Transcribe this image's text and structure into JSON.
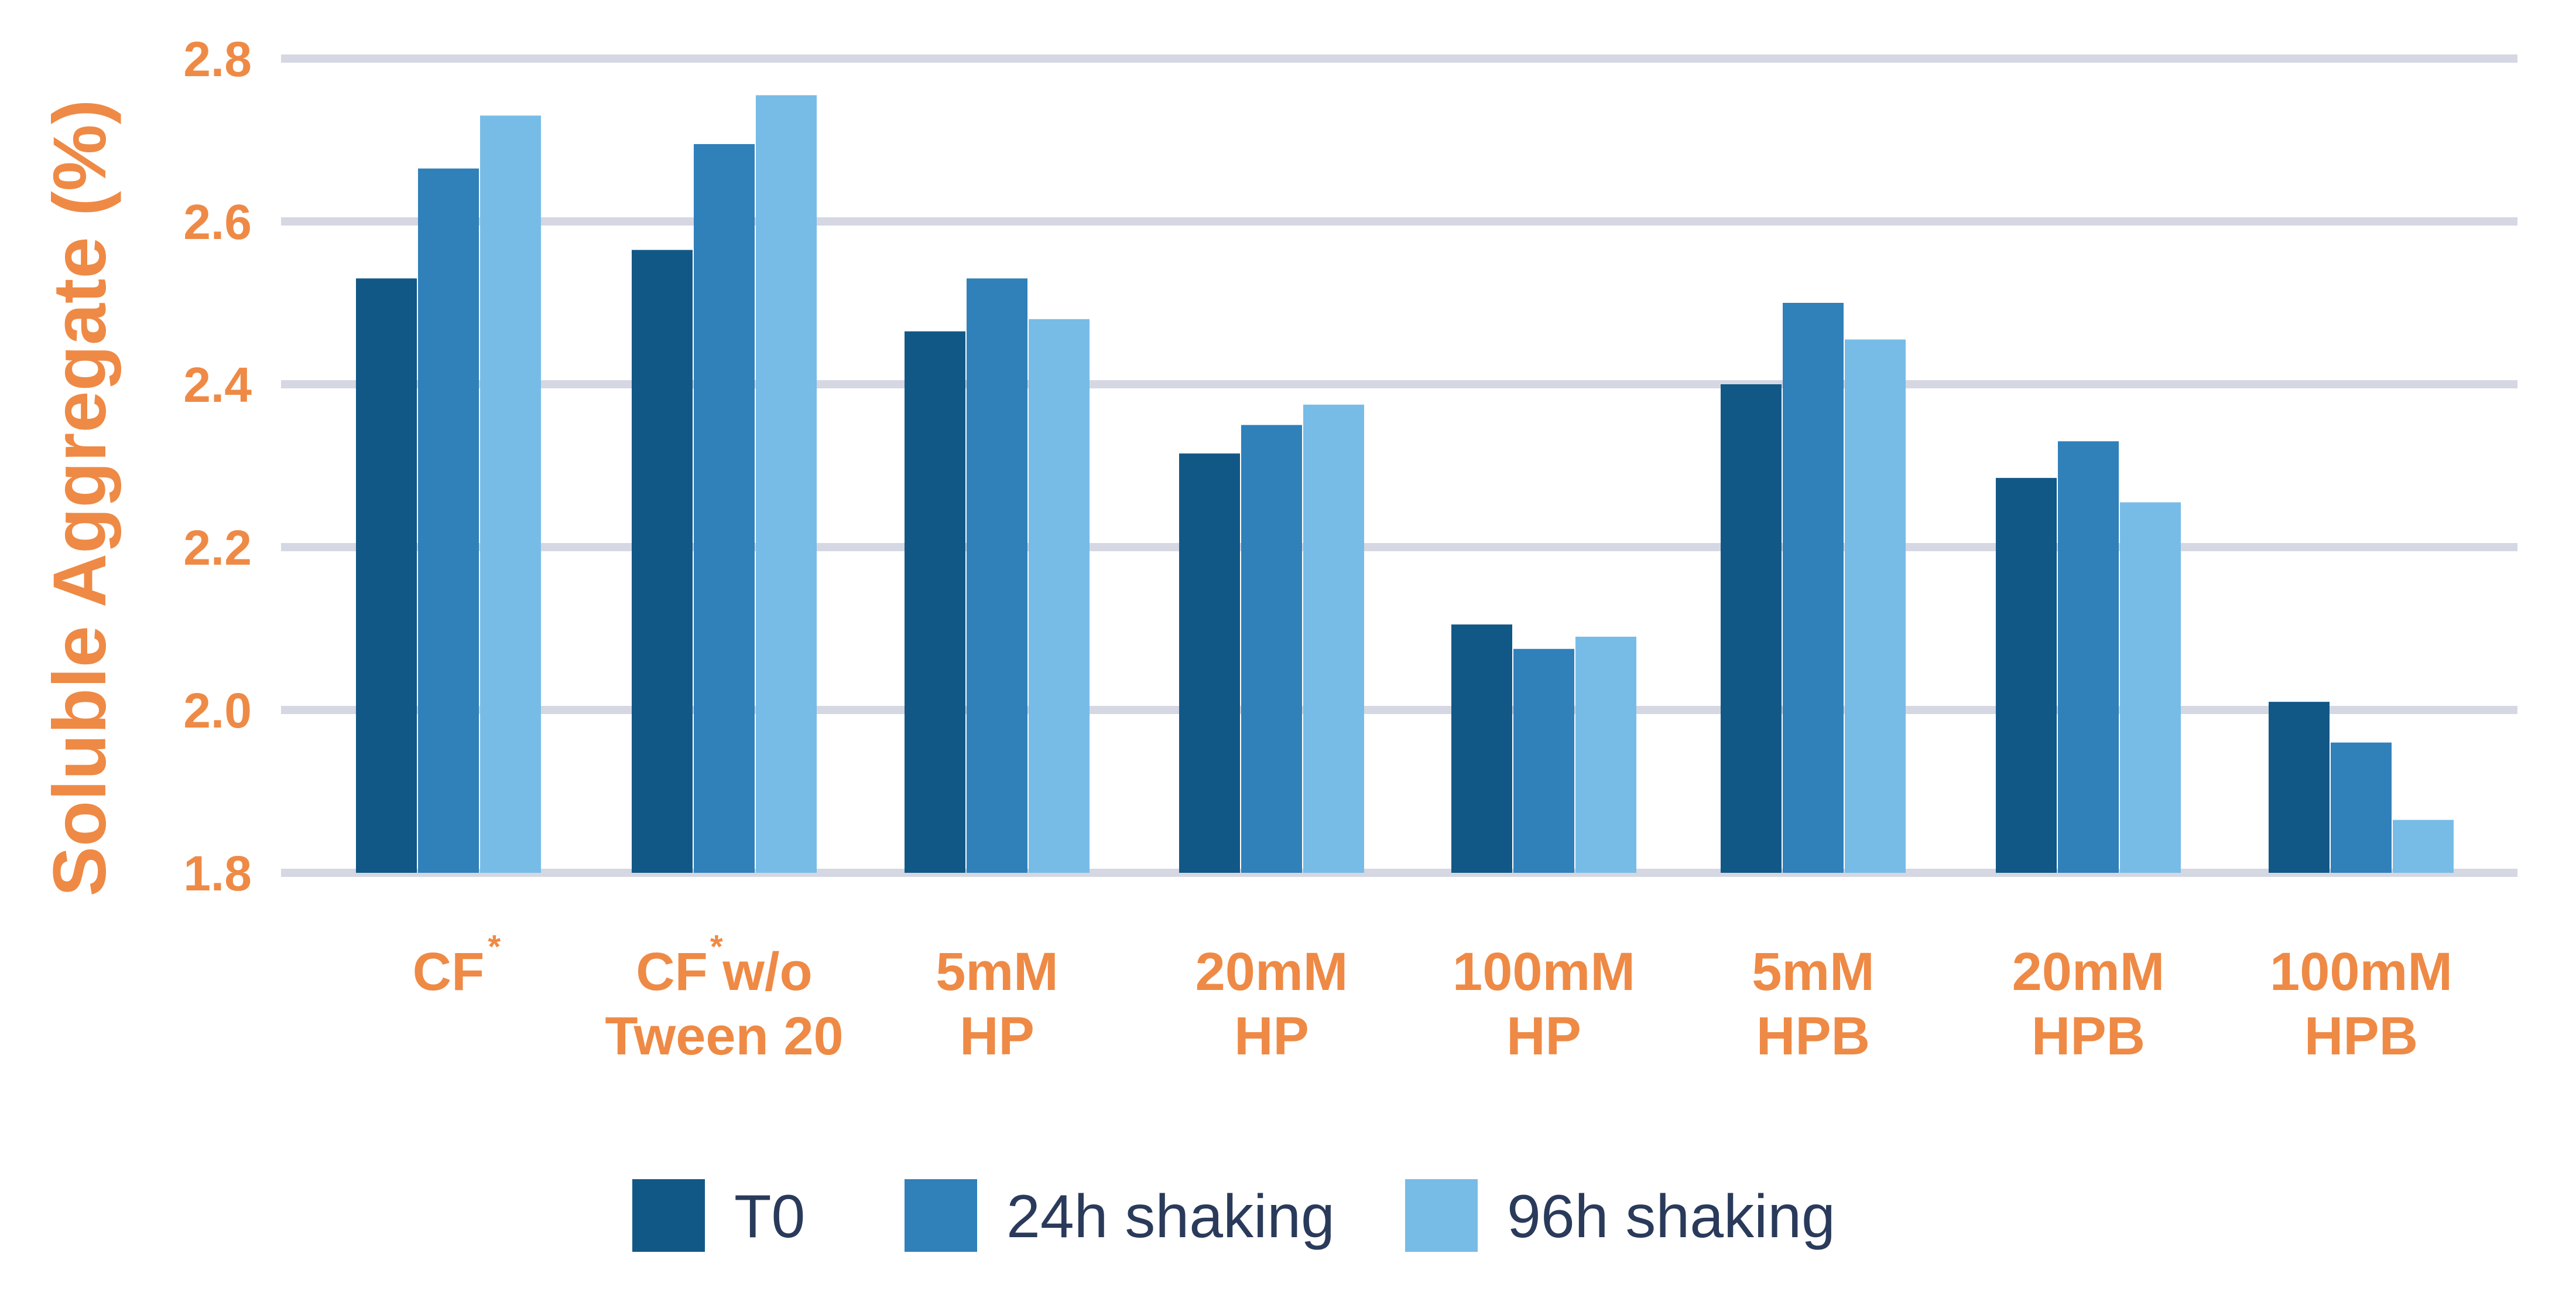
{
  "chart_data": {
    "type": "bar",
    "title": "",
    "xlabel": "",
    "ylabel": "Soluble Aggregate (%)",
    "ylim": [
      1.8,
      2.8
    ],
    "yticks": [
      "1.8",
      "2.0",
      "2.2",
      "2.4",
      "2.6",
      "2.8"
    ],
    "grid": true,
    "legend_position": "bottom",
    "categories": [
      {
        "lines": [
          "CF"
        ],
        "star_after_line": 0
      },
      {
        "lines": [
          "CF w/o",
          "Tween 20"
        ],
        "star_after_text": "CF"
      },
      {
        "lines": [
          "5mM",
          "HP"
        ]
      },
      {
        "lines": [
          "20mM",
          "HP"
        ]
      },
      {
        "lines": [
          "100mM",
          "HP"
        ]
      },
      {
        "lines": [
          "5mM",
          "HPB"
        ]
      },
      {
        "lines": [
          "20mM",
          "HPB"
        ]
      },
      {
        "lines": [
          "100mM",
          "HPB"
        ]
      }
    ],
    "footnote_marker": "*",
    "series": [
      {
        "name": "T0",
        "color": "#125886",
        "values": [
          2.53,
          2.565,
          2.465,
          2.315,
          2.105,
          2.4,
          2.285,
          2.01
        ]
      },
      {
        "name": "24h shaking",
        "color": "#3080b9",
        "values": [
          2.665,
          2.695,
          2.53,
          2.35,
          2.075,
          2.5,
          2.33,
          1.96
        ]
      },
      {
        "name": "96h shaking",
        "color": "#77bce7",
        "values": [
          2.73,
          2.755,
          2.48,
          2.375,
          2.09,
          2.455,
          2.255,
          1.865
        ]
      }
    ]
  }
}
